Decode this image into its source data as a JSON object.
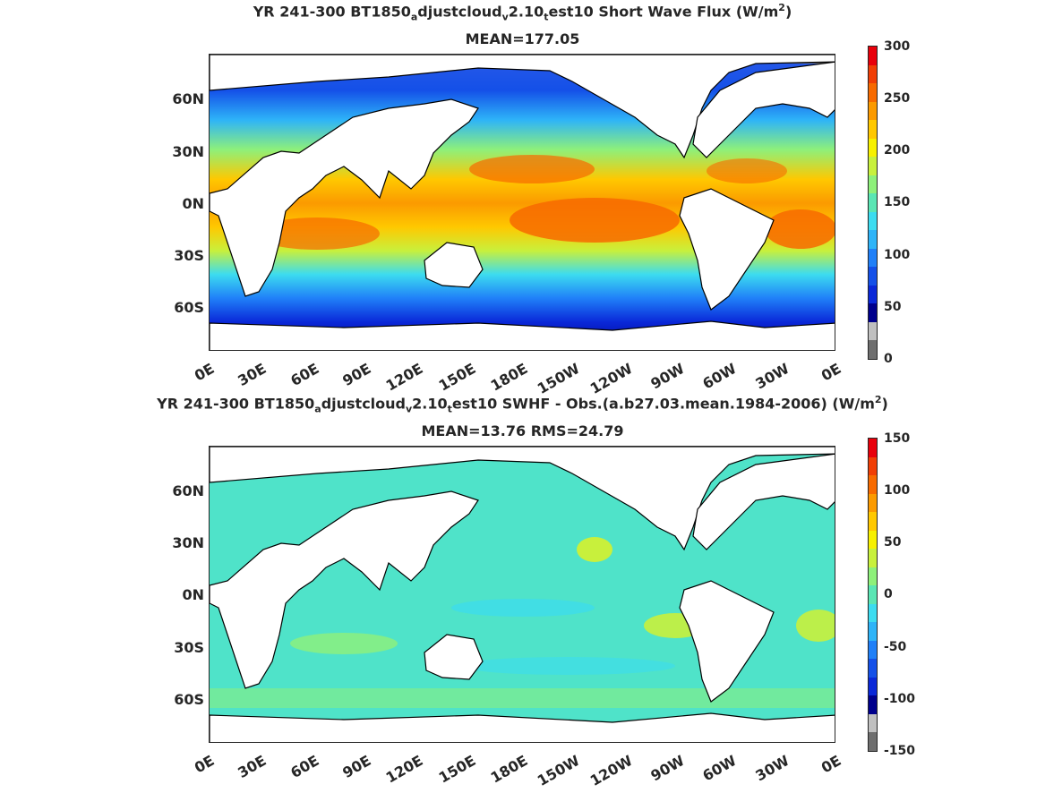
{
  "panels": [
    {
      "title_parts": [
        "YR 241-300 BT1850",
        "a",
        "djustcloud",
        "v",
        "2.10",
        "t",
        "est10  Short Wave Flux (W/m",
        "2",
        ")"
      ],
      "subtitle": "MEAN=177.05",
      "colorbar": {
        "ticks": [
          "300",
          "250",
          "200",
          "150",
          "100",
          "50",
          "0"
        ],
        "colors": [
          "#e8000b",
          "#f03e05",
          "#f76a00",
          "#fb9a00",
          "#ffc800",
          "#f7f000",
          "#c8f03c",
          "#8ef07a",
          "#5ae6b4",
          "#3cdcf0",
          "#2eb4f8",
          "#2080f8",
          "#1450e8",
          "#0a28d8",
          "#00008c",
          "#c0c0c0",
          "#6e6e6e"
        ]
      }
    },
    {
      "title_parts": [
        "YR 241-300 BT1850",
        "a",
        "djustcloud",
        "v",
        "2.10",
        "t",
        "est10 SWHF - Obs.(a.b27.03.mean.1984-2006) (W/m",
        "2",
        ")"
      ],
      "subtitle": "MEAN=13.76 RMS=24.79",
      "colorbar": {
        "ticks": [
          "150",
          "100",
          "50",
          "0",
          "-50",
          "-100",
          "-150"
        ],
        "colors": [
          "#e8000b",
          "#f03e05",
          "#f76a00",
          "#fb9a00",
          "#ffc800",
          "#f7f000",
          "#c8f03c",
          "#8ef07a",
          "#5ae6b4",
          "#3cdcf0",
          "#2eb4f8",
          "#2080f8",
          "#1450e8",
          "#0a28d8",
          "#00008c",
          "#c0c0c0",
          "#6e6e6e"
        ]
      }
    }
  ],
  "lat_labels": [
    "60N",
    "30N",
    "0N",
    "30S",
    "60S"
  ],
  "lon_labels": [
    "0E",
    "30E",
    "60E",
    "90E",
    "120E",
    "150E",
    "180E",
    "150W",
    "120W",
    "90W",
    "60W",
    "30W",
    "0E"
  ]
}
